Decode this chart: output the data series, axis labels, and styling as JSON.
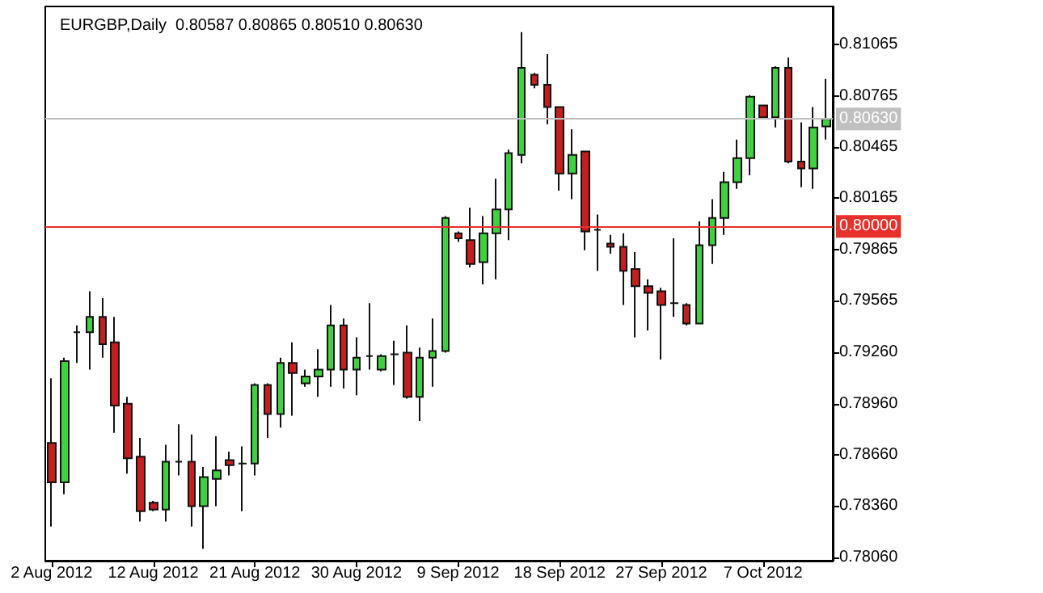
{
  "chart_data": {
    "type": "candlestick",
    "title": "EURGBP,Daily  0.80587 0.80865 0.80510 0.80630",
    "categories": [
      "2 Aug 2012",
      null,
      null,
      null,
      null,
      null,
      null,
      null,
      "12 Aug 2012",
      null,
      null,
      null,
      null,
      null,
      null,
      null,
      "21 Aug 2012",
      null,
      null,
      null,
      null,
      null,
      null,
      null,
      "30 Aug 2012",
      null,
      null,
      null,
      null,
      null,
      null,
      null,
      "9 Sep 2012",
      null,
      null,
      null,
      null,
      null,
      null,
      null,
      "18 Sep 2012",
      null,
      null,
      null,
      null,
      null,
      null,
      null,
      "27 Sep 2012",
      null,
      null,
      null,
      null,
      null,
      null,
      null,
      "7 Oct 2012",
      null,
      null,
      null,
      null,
      null
    ],
    "ohlc": [
      [
        0.7873,
        0.7911,
        0.7824,
        0.785
      ],
      [
        0.785,
        0.7923,
        0.7843,
        0.7921
      ],
      [
        0.7938,
        0.7942,
        0.792,
        0.7938
      ],
      [
        0.7938,
        0.7962,
        0.7916,
        0.7947
      ],
      [
        0.7947,
        0.7958,
        0.7923,
        0.7931
      ],
      [
        0.7932,
        0.7947,
        0.7879,
        0.7895
      ],
      [
        0.7896,
        0.79,
        0.7855,
        0.7864
      ],
      [
        0.7865,
        0.7876,
        0.7827,
        0.7833
      ],
      [
        0.7838,
        0.7839,
        0.7833,
        0.7834
      ],
      [
        0.7834,
        0.7872,
        0.7827,
        0.7862
      ],
      [
        0.7862,
        0.7884,
        0.7854,
        0.7862
      ],
      [
        0.7862,
        0.7878,
        0.7824,
        0.7836
      ],
      [
        0.7836,
        0.7859,
        0.7811,
        0.7853
      ],
      [
        0.7852,
        0.7877,
        0.7836,
        0.7857
      ],
      [
        0.7863,
        0.7868,
        0.7854,
        0.786
      ],
      [
        0.7861,
        0.7871,
        0.7833,
        0.7861
      ],
      [
        0.7861,
        0.7908,
        0.7854,
        0.7907
      ],
      [
        0.7907,
        0.7908,
        0.7876,
        0.789
      ],
      [
        0.789,
        0.7923,
        0.7882,
        0.792
      ],
      [
        0.792,
        0.7932,
        0.7889,
        0.7914
      ],
      [
        0.7908,
        0.7916,
        0.7906,
        0.7912
      ],
      [
        0.7912,
        0.7928,
        0.79,
        0.7916
      ],
      [
        0.7916,
        0.7954,
        0.7906,
        0.7942
      ],
      [
        0.7942,
        0.7946,
        0.7905,
        0.7916
      ],
      [
        0.7916,
        0.7935,
        0.7901,
        0.7923
      ],
      [
        0.7924,
        0.7955,
        0.7916,
        0.7924
      ],
      [
        0.7916,
        0.7925,
        0.7915,
        0.7924
      ],
      [
        0.7925,
        0.7933,
        0.7907,
        0.7925
      ],
      [
        0.7926,
        0.7942,
        0.7899,
        0.79
      ],
      [
        0.79,
        0.7929,
        0.7886,
        0.7923
      ],
      [
        0.7923,
        0.7946,
        0.7906,
        0.7927
      ],
      [
        0.7927,
        0.8006,
        0.7926,
        0.8005
      ],
      [
        0.7996,
        0.7997,
        0.7991,
        0.7993
      ],
      [
        0.7992,
        0.8011,
        0.7976,
        0.7978
      ],
      [
        0.7979,
        0.8006,
        0.7966,
        0.7996
      ],
      [
        0.7996,
        0.8028,
        0.7969,
        0.801
      ],
      [
        0.801,
        0.8045,
        0.7992,
        0.8043
      ],
      [
        0.8042,
        0.8114,
        0.8037,
        0.8093
      ],
      [
        0.8089,
        0.809,
        0.8081,
        0.8083
      ],
      [
        0.8083,
        0.8101,
        0.806,
        0.807
      ],
      [
        0.807,
        0.807,
        0.8021,
        0.8031
      ],
      [
        0.8031,
        0.8057,
        0.8016,
        0.8042
      ],
      [
        0.8044,
        0.8044,
        0.7986,
        0.7997
      ],
      [
        0.7998,
        0.8007,
        0.7974,
        0.7998
      ],
      [
        0.799,
        0.7995,
        0.7984,
        0.7988
      ],
      [
        0.7988,
        0.7996,
        0.7954,
        0.7974
      ],
      [
        0.7975,
        0.7985,
        0.7935,
        0.7965
      ],
      [
        0.7965,
        0.7969,
        0.7939,
        0.7961
      ],
      [
        0.7962,
        0.7964,
        0.7922,
        0.7954
      ],
      [
        0.7955,
        0.7993,
        0.7947,
        0.7955
      ],
      [
        0.7954,
        0.7955,
        0.7942,
        0.7943
      ],
      [
        0.7943,
        0.8003,
        0.7943,
        0.7989
      ],
      [
        0.7989,
        0.8016,
        0.7978,
        0.8005
      ],
      [
        0.8005,
        0.8032,
        0.7995,
        0.8026
      ],
      [
        0.8026,
        0.8051,
        0.8022,
        0.804
      ],
      [
        0.804,
        0.8077,
        0.803,
        0.8076
      ],
      [
        0.8071,
        0.8071,
        0.8064,
        0.8064
      ],
      [
        0.8064,
        0.8094,
        0.8058,
        0.8093
      ],
      [
        0.8093,
        0.8099,
        0.8037,
        0.8038
      ],
      [
        0.8038,
        0.8061,
        0.8023,
        0.8034
      ],
      [
        0.8034,
        0.807,
        0.8022,
        0.8058
      ],
      [
        0.80587,
        0.80865,
        0.8051,
        0.8063
      ]
    ],
    "colors": [
      "#c41e1e",
      "#3fd13f",
      "#111111",
      "#3fd13f",
      "#c41e1e",
      "#c41e1e",
      "#c41e1e",
      "#c41e1e",
      "#c41e1e",
      "#3fd13f",
      "#111111",
      "#c41e1e",
      "#3fd13f",
      "#3fd13f",
      "#c41e1e",
      "#111111",
      "#3fd13f",
      "#c41e1e",
      "#3fd13f",
      "#c41e1e",
      "#3fd13f",
      "#3fd13f",
      "#3fd13f",
      "#c41e1e",
      "#3fd13f",
      "#111111",
      "#3fd13f",
      "#111111",
      "#c41e1e",
      "#3fd13f",
      "#3fd13f",
      "#3fd13f",
      "#c41e1e",
      "#c41e1e",
      "#3fd13f",
      "#3fd13f",
      "#3fd13f",
      "#3fd13f",
      "#c41e1e",
      "#c41e1e",
      "#c41e1e",
      "#3fd13f",
      "#c41e1e",
      "#111111",
      "#c41e1e",
      "#c41e1e",
      "#c41e1e",
      "#c41e1e",
      "#c41e1e",
      "#111111",
      "#c41e1e",
      "#3fd13f",
      "#3fd13f",
      "#3fd13f",
      "#3fd13f",
      "#3fd13f",
      "#c41e1e",
      "#3fd13f",
      "#c41e1e",
      "#c41e1e",
      "#3fd13f",
      "#3fd13f"
    ],
    "ylim": [
      0.7804,
      0.8129
    ],
    "yticks": [
      {
        "value": 0.7806,
        "label": "0.78060"
      },
      {
        "value": 0.7836,
        "label": "0.78360"
      },
      {
        "value": 0.7866,
        "label": "0.78660"
      },
      {
        "value": 0.7896,
        "label": "0.78960"
      },
      {
        "value": 0.7926,
        "label": "0.79260"
      },
      0.79565,
      0.79865,
      0.80165,
      0.80465,
      0.80765,
      0.81065
    ],
    "ref_lines": [
      {
        "axis": "y",
        "value": 0.8,
        "label": "0.80000",
        "color": "#e8302a"
      },
      {
        "axis": "y",
        "value": 0.8063,
        "label": "0.80630",
        "color": "#c0c0c0"
      }
    ],
    "grid": false
  }
}
